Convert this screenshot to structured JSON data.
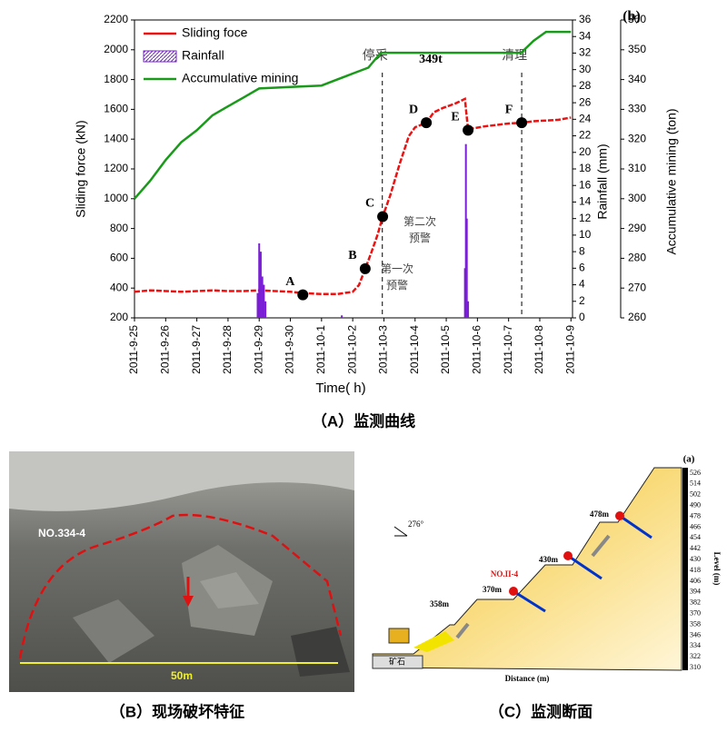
{
  "chart_data": {
    "type": "line",
    "panel_label": "(b)",
    "x_label": "Time(  h)",
    "y_label": "Sliding force (kN)",
    "y2_label": "Rainfall (mm)",
    "y3_label": "Accumulative mining (ton)",
    "caption": "（A）监测曲线",
    "xlim": [
      0,
      14.05
    ],
    "xticks": [
      {
        "value": 0,
        "label": "2011-9-25"
      },
      {
        "value": 1,
        "label": "2011-9-26"
      },
      {
        "value": 2,
        "label": "2011-9-27"
      },
      {
        "value": 3,
        "label": "2011-9-28"
      },
      {
        "value": 4,
        "label": "2011-9-29"
      },
      {
        "value": 5,
        "label": "2011-9-30"
      },
      {
        "value": 6,
        "label": "2011-10-1"
      },
      {
        "value": 7,
        "label": "2011-10-2"
      },
      {
        "value": 8,
        "label": "2011-10-3"
      },
      {
        "value": 9,
        "label": "2011-10-4"
      },
      {
        "value": 10,
        "label": "2011-10-5"
      },
      {
        "value": 11,
        "label": "2011-10-6"
      },
      {
        "value": 12,
        "label": "2011-10-7"
      },
      {
        "value": 13,
        "label": "2011-10-8"
      },
      {
        "value": 14,
        "label": "2011-10-9"
      }
    ],
    "ylim": [
      200,
      2200
    ],
    "yticks": [
      200,
      400,
      600,
      800,
      1000,
      1200,
      1400,
      1600,
      1800,
      2000,
      2200
    ],
    "y2lim": [
      0,
      36
    ],
    "y2ticks": [
      0,
      2,
      4,
      6,
      8,
      10,
      12,
      14,
      16,
      18,
      20,
      22,
      24,
      26,
      28,
      30,
      32,
      34,
      36
    ],
    "y3lim": [
      260,
      360
    ],
    "y3ticks": [
      260,
      270,
      280,
      290,
      300,
      310,
      320,
      330,
      340,
      350,
      360
    ],
    "series": [
      {
        "name": "Sliding foce",
        "color": "#ee1111",
        "kind": "line",
        "x": [
          0,
          0.5,
          1,
          1.5,
          2,
          2.5,
          3,
          3.5,
          4,
          4.5,
          5,
          5.5,
          6,
          6.5,
          7,
          7.2,
          7.4,
          7.6,
          7.8,
          7.96,
          8.2,
          8.5,
          8.8,
          9.0,
          9.36,
          9.6,
          9.9,
          10.3,
          10.6,
          10.7,
          10.8,
          11.2,
          11.6,
          12,
          12.42,
          12.8,
          13.2,
          13.6,
          14
        ],
        "values": [
          375,
          385,
          380,
          375,
          380,
          385,
          380,
          380,
          385,
          380,
          375,
          365,
          360,
          360,
          375,
          420,
          530,
          640,
          760,
          880,
          1020,
          1230,
          1420,
          1480,
          1510,
          1580,
          1610,
          1640,
          1670,
          1460,
          1470,
          1485,
          1495,
          1505,
          1510,
          1520,
          1525,
          1530,
          1545
        ]
      },
      {
        "name": "Rainfall",
        "color": "#7a1fd6",
        "kind": "bar",
        "axis": "y2",
        "x": [
          3.95,
          4.0,
          4.05,
          4.1,
          4.15,
          4.2,
          6.65,
          10.6,
          10.63,
          10.66,
          10.7
        ],
        "values": [
          3,
          9,
          8,
          5,
          4,
          2,
          0.3,
          6,
          21,
          12,
          2
        ]
      },
      {
        "name": "Accumulative mining",
        "color": "#1a9a1a",
        "kind": "line",
        "axis": "y3",
        "x": [
          0,
          0.5,
          1,
          1.5,
          2,
          2.5,
          3,
          3.5,
          4,
          5,
          6,
          6.5,
          7,
          7.5,
          7.9,
          8.5,
          9,
          10,
          11,
          12.4,
          12.8,
          13.2,
          13.6,
          14
        ],
        "values": [
          300,
          306,
          313,
          319,
          323,
          328,
          331,
          334,
          337,
          337.5,
          338,
          340,
          342,
          344,
          349,
          349,
          349,
          349,
          349,
          349,
          353,
          356,
          356,
          356
        ]
      }
    ],
    "points": [
      {
        "label": "A",
        "x": 5.4,
        "y": 355
      },
      {
        "label": "B",
        "x": 7.4,
        "y": 530
      },
      {
        "label": "C",
        "x": 7.96,
        "y": 880
      },
      {
        "label": "D",
        "x": 9.36,
        "y": 1510
      },
      {
        "label": "E",
        "x": 10.7,
        "y": 1460
      },
      {
        "label": "F",
        "x": 12.42,
        "y": 1510
      }
    ],
    "events": [
      {
        "x": 7.95,
        "label": "停采"
      },
      {
        "x": 12.42,
        "label": "清理"
      }
    ],
    "mining_note": "349t",
    "warnings": [
      {
        "lines": [
          "第二次",
          "预警"
        ]
      },
      {
        "lines": [
          "第一次",
          "预警"
        ]
      }
    ]
  },
  "panel_b": {
    "label": "NO.334-4",
    "scale": "50m",
    "caption": "（B）现场破坏特征"
  },
  "panel_c": {
    "label": "(a)",
    "angle": "276°",
    "benches": [
      "478m",
      "430m",
      "370m",
      "358m"
    ],
    "marker": "NO.II-4",
    "ore": "矿石",
    "x_label": "Distance (m)",
    "y_label": "Level (m)",
    "levels": [
      526,
      514,
      502,
      490,
      478,
      466,
      454,
      442,
      430,
      418,
      406,
      394,
      382,
      370,
      358,
      346,
      334,
      322,
      310
    ],
    "caption": "（C）监测断面"
  }
}
